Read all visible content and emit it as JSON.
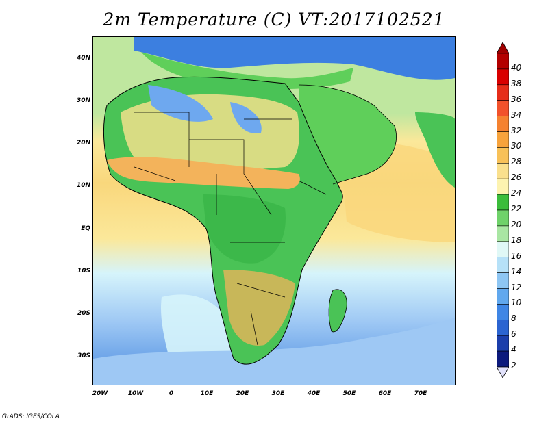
{
  "title": "2m Temperature (C) VT:2017102521",
  "footer": "GrADS: IGES/COLA",
  "map": {
    "lat_labels": [
      "40N",
      "30N",
      "20N",
      "10N",
      "EQ",
      "10S",
      "20S",
      "30S"
    ],
    "lon_labels": [
      "20W",
      "10W",
      "0",
      "10E",
      "20E",
      "30E",
      "40E",
      "50E",
      "60E",
      "70E"
    ],
    "colors": {
      "ocean_deep_south": "#4a8be0",
      "ocean_south": "#9ec8f4",
      "ocean_cool": "#d6f4fb",
      "ocean_mid": "#bfe79f",
      "ocean_warm": "#fbe89a",
      "ocean_tropical": "#f9d77c",
      "sahara": "#fbe28e",
      "sahel": "#f3b35b",
      "forest": "#4ac356",
      "mountains": "#6ea8ef",
      "mediterranean": "#5fcf5a",
      "europe": "#3c7fe0",
      "red_sea": "#f2a23a",
      "border": "#000000"
    }
  },
  "colorbar": {
    "labels": [
      "40",
      "38",
      "36",
      "34",
      "32",
      "30",
      "28",
      "26",
      "24",
      "22",
      "20",
      "18",
      "16",
      "14",
      "12",
      "10",
      "8",
      "6",
      "4",
      "2"
    ],
    "colors": [
      "#b30000",
      "#d90000",
      "#e62d19",
      "#f2522b",
      "#f58230",
      "#f7a33c",
      "#f8c158",
      "#fae08d",
      "#fdf3b0",
      "#3bbd3b",
      "#6fd26a",
      "#a9e6a3",
      "#e0f8f6",
      "#b6e1f8",
      "#8ec6f3",
      "#61a8ee",
      "#3f86e5",
      "#2b64d1",
      "#1b3eab",
      "#0c1a7d"
    ],
    "top_arrow_color": "#a00000",
    "bottom_arrow_color": "#e2e2fb"
  }
}
